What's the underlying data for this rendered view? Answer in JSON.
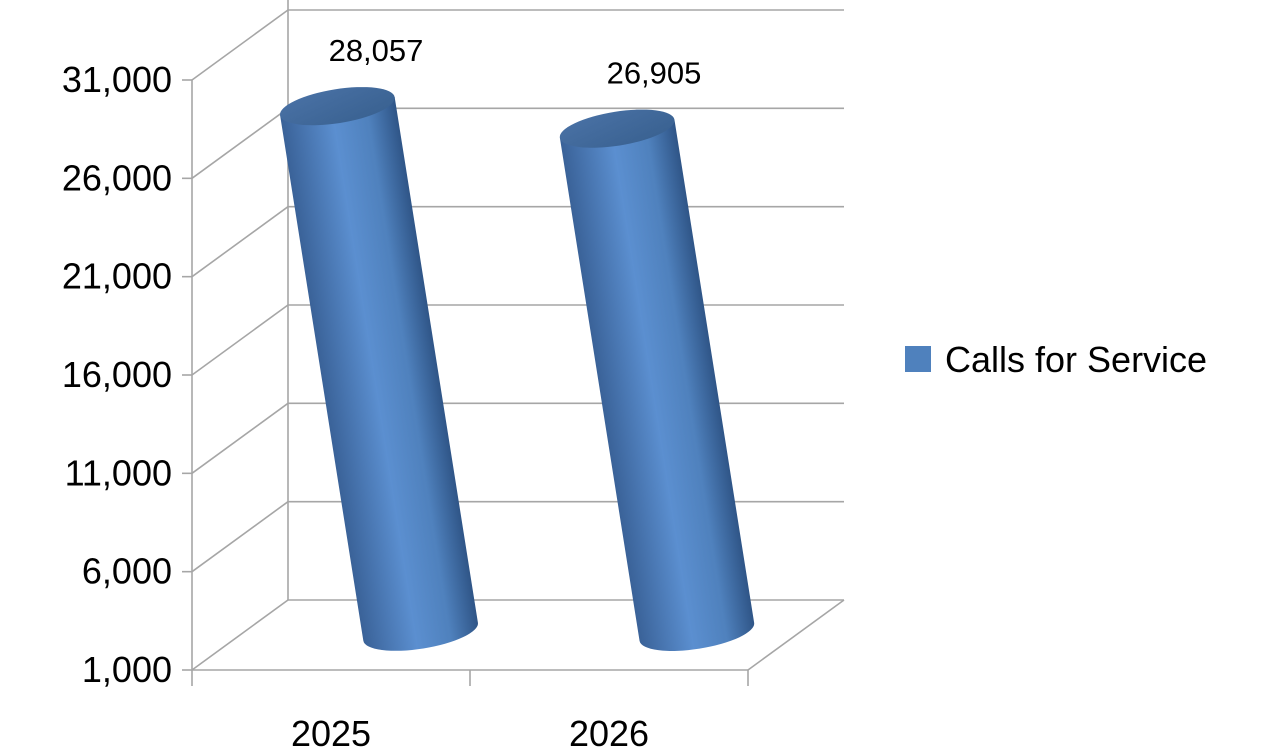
{
  "chart_data": {
    "type": "bar",
    "style": "3d-cylinder",
    "categories": [
      "2025",
      "2026"
    ],
    "series": [
      {
        "name": "Calls for Service",
        "values": [
          28057,
          26905
        ],
        "color": "#4f81bd"
      }
    ],
    "data_labels": [
      "28,057",
      "26,905"
    ],
    "ylim": [
      1000,
      31000
    ],
    "y_ticks": [
      1000,
      6000,
      11000,
      16000,
      21000,
      26000,
      31000
    ],
    "y_tick_labels": [
      "1,000",
      "6,000",
      "11,000",
      "16,000",
      "21,000",
      "26,000",
      "31,000"
    ],
    "grid": true,
    "legend_position": "right"
  }
}
